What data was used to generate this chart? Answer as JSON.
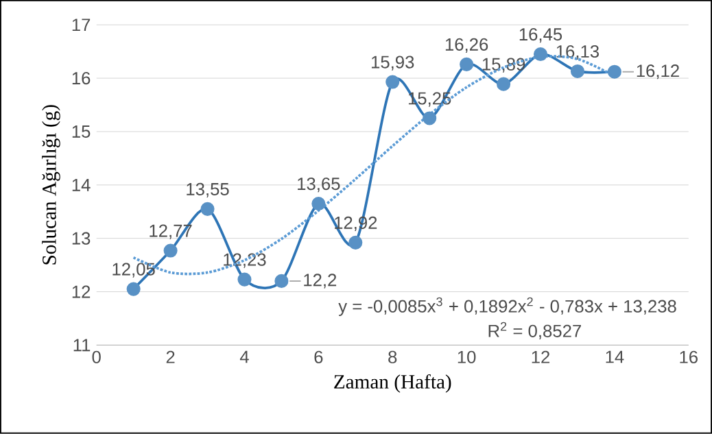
{
  "chart_data": {
    "type": "line",
    "xlabel": "Zaman (Hafta)",
    "ylabel": "Solucan Ağırlığı (g)",
    "xlim": [
      0,
      16
    ],
    "xticks": [
      0,
      2,
      4,
      6,
      8,
      10,
      12,
      14,
      16
    ],
    "ylim": [
      11,
      17
    ],
    "yticks": [
      11,
      12,
      13,
      14,
      15,
      16,
      17
    ],
    "grid": "y",
    "marker": "circle",
    "series": [
      {
        "type": "line",
        "color": "#2e75b6",
        "x": [
          1,
          2,
          3,
          4,
          5,
          6,
          7,
          8,
          9,
          10,
          11,
          12,
          13,
          14
        ],
        "values": [
          12.05,
          12.77,
          13.55,
          12.23,
          12.2,
          13.65,
          12.92,
          15.93,
          15.25,
          16.26,
          15.89,
          16.45,
          16.13,
          16.12
        ],
        "value_labels": [
          "12,05",
          "12,77",
          "13,55",
          "12,23",
          "12,2",
          "13,65",
          "12,92",
          "15,93",
          "15,25",
          "16,26",
          "15,89",
          "16,45",
          "16,13",
          "16,12"
        ],
        "line_style": "solid"
      },
      {
        "type": "line",
        "color": "#5b9bd5",
        "x": [
          1,
          2,
          3,
          4,
          5,
          6,
          7,
          8,
          9,
          10,
          11,
          12,
          13,
          14
        ],
        "values": [
          12.64,
          12.36,
          12.36,
          12.59,
          12.99,
          13.52,
          14.11,
          14.73,
          15.32,
          15.83,
          16.2,
          16.4,
          16.36,
          16.04
        ],
        "marker": "none",
        "line_style": "dotted"
      }
    ],
    "annotations": [
      "y = -0,0085x$^{3}$ + 0,1892x$^{2}$ - 0,783x + 13,238",
      "R$^{2}$ = 0,8527"
    ]
  }
}
